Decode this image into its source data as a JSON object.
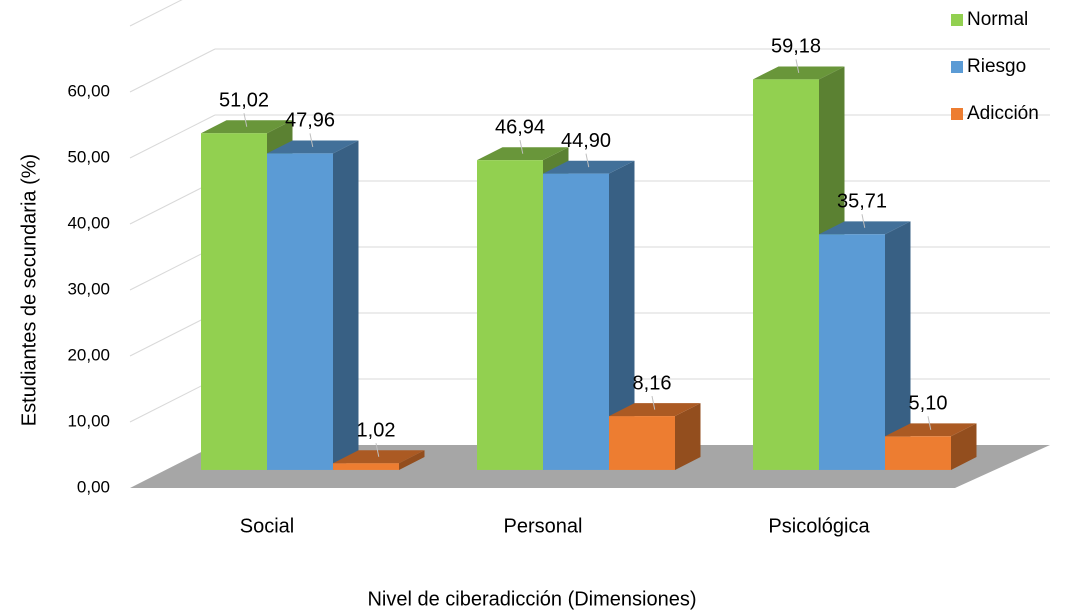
{
  "chart_data": {
    "type": "bar3d",
    "x_label": "Nivel de ciberadicción (Dimensiones)",
    "y_label": "Estudiantes de secundaria (%)",
    "categories": [
      "Social",
      "Personal",
      "Psicológica"
    ],
    "series": [
      {
        "name": "Normal",
        "color": "#92d050",
        "values": [
          51.02,
          46.94,
          59.18
        ],
        "value_labels": [
          "51,02",
          "46,94",
          "59,18"
        ]
      },
      {
        "name": "Riesgo",
        "color": "#5b9bd5",
        "values": [
          47.96,
          44.9,
          35.71
        ],
        "value_labels": [
          "47,96",
          "44,90",
          "35,71"
        ]
      },
      {
        "name": "Adicción",
        "color": "#ed7d31",
        "values": [
          1.02,
          8.16,
          5.1
        ],
        "value_labels": [
          "1,02",
          "8,16",
          "5,10"
        ]
      }
    ],
    "ylim": [
      0,
      70
    ],
    "yticks": [
      {
        "value": 0,
        "label": "0,00"
      },
      {
        "value": 10,
        "label": "10,00"
      },
      {
        "value": 20,
        "label": "20,00"
      },
      {
        "value": 30,
        "label": "30,00"
      },
      {
        "value": 40,
        "label": "40,00"
      },
      {
        "value": 50,
        "label": "50,00"
      },
      {
        "value": 60,
        "label": "60,00"
      }
    ],
    "grid": true,
    "legend": "top-right"
  }
}
